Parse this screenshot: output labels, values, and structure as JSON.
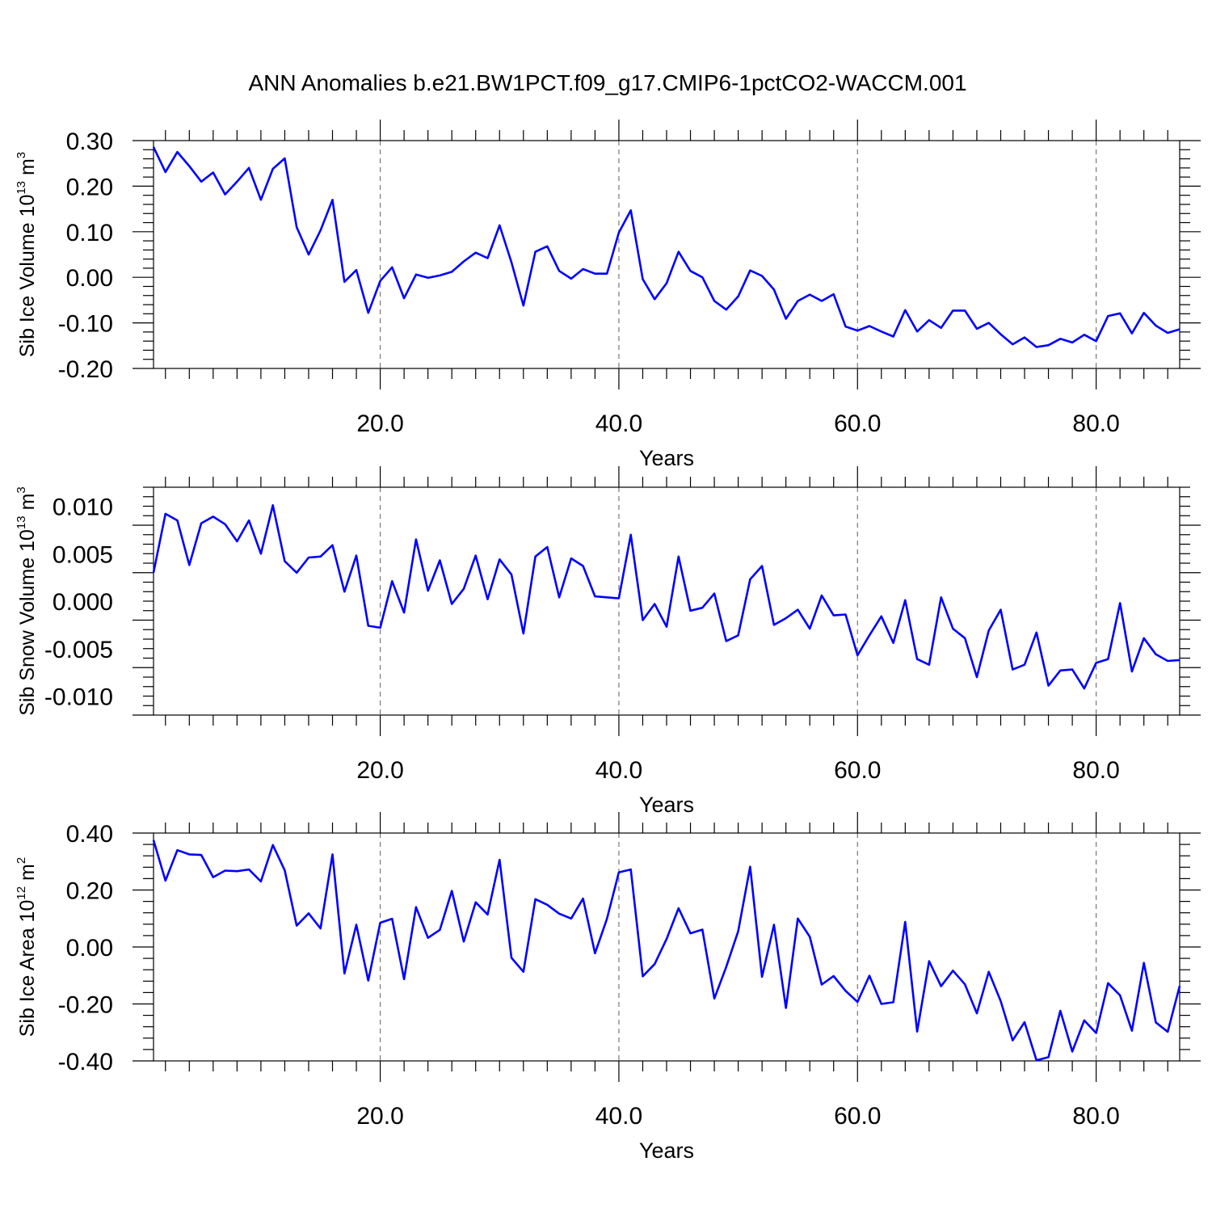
{
  "title": "ANN Anomalies b.e21.BW1PCT.f09_g17.CMIP6-1pctCO2-WACCM.001",
  "colors": {
    "line": "#0000ff",
    "grid": "#777777"
  },
  "chart_data": [
    {
      "type": "line",
      "xlabel": "Years",
      "ylabel": "Sib Ice Volume 10",
      "ylabel_sup": "13",
      "ylabel_unit": " m",
      "ylabel_unit_sup": "3",
      "xlim": [
        1,
        87
      ],
      "ylim": [
        -0.2,
        0.3
      ],
      "xticks": [
        20,
        40,
        60,
        80
      ],
      "xtick_labels": [
        "20.0",
        "40.0",
        "60.0",
        "80.0"
      ],
      "yticks": [
        0.3,
        0.2,
        0.1,
        0.0,
        -0.1,
        -0.2
      ],
      "ytick_labels": [
        "0.30",
        "0.20",
        "0.10",
        "0.00",
        "-0.10",
        "-0.20"
      ],
      "grid_x_dashed": true,
      "x_start": 1,
      "values": [
        0.286,
        0.231,
        0.275,
        0.244,
        0.21,
        0.23,
        0.182,
        0.21,
        0.24,
        0.17,
        0.238,
        0.261,
        0.11,
        0.05,
        0.103,
        0.17,
        -0.01,
        0.016,
        -0.078,
        -0.008,
        0.022,
        -0.046,
        0.006,
        -0.001,
        0.004,
        0.012,
        0.035,
        0.054,
        0.042,
        0.114,
        0.033,
        -0.062,
        0.056,
        0.068,
        0.014,
        -0.003,
        0.018,
        0.008,
        0.008,
        0.098,
        0.147,
        -0.004,
        -0.048,
        -0.013,
        0.056,
        0.014,
        0.0,
        -0.052,
        -0.071,
        -0.042,
        0.015,
        0.003,
        -0.027,
        -0.091,
        -0.052,
        -0.038,
        -0.052,
        -0.037,
        -0.108,
        -0.117,
        -0.107,
        -0.119,
        -0.13,
        -0.072,
        -0.119,
        -0.094,
        -0.111,
        -0.073,
        -0.073,
        -0.113,
        -0.1,
        -0.125,
        -0.147,
        -0.132,
        -0.153,
        -0.149,
        -0.135,
        -0.143,
        -0.126,
        -0.14,
        -0.085,
        -0.079,
        -0.123,
        -0.078,
        -0.106,
        -0.122,
        -0.114
      ]
    },
    {
      "type": "line",
      "xlabel": "Years",
      "ylabel": "Sib Snow Volume 10",
      "ylabel_sup": "13",
      "ylabel_unit": " m",
      "ylabel_unit_sup": "3",
      "xlim": [
        1,
        87
      ],
      "ylim": [
        -0.012,
        0.012
      ],
      "xticks": [
        20,
        40,
        60,
        80
      ],
      "xtick_labels": [
        "20.0",
        "40.0",
        "60.0",
        "80.0"
      ],
      "yticks": [
        0.01,
        0.005,
        0.0,
        -0.005,
        -0.01
      ],
      "ytick_labels": [
        "0.010",
        "0.005",
        "0.000",
        "-0.005",
        "-0.010"
      ],
      "grid_x_dashed": true,
      "x_start": 1,
      "values": [
        0.003,
        0.0092,
        0.0085,
        0.0038,
        0.0082,
        0.0089,
        0.0081,
        0.0063,
        0.0085,
        0.005,
        0.0101,
        0.0042,
        0.003,
        0.0046,
        0.0047,
        0.0059,
        0.001,
        0.0048,
        -0.0026,
        -0.0028,
        0.0021,
        -0.0012,
        0.0065,
        0.0011,
        0.0043,
        -0.0003,
        0.0013,
        0.0048,
        0.0002,
        0.0044,
        0.0028,
        -0.0034,
        0.0047,
        0.0057,
        0.0004,
        0.0045,
        0.0037,
        0.0005,
        0.0004,
        0.0003,
        0.007,
        -0.002,
        -0.0003,
        -0.0027,
        0.0047,
        -0.001,
        -0.0007,
        0.0008,
        -0.0042,
        -0.0036,
        0.0023,
        0.0037,
        -0.0025,
        -0.0018,
        -0.0009,
        -0.0029,
        0.0006,
        -0.0015,
        -0.0014,
        -0.0057,
        -0.0036,
        -0.0016,
        -0.0044,
        0.0001,
        -0.0061,
        -0.0067,
        0.0004,
        -0.0029,
        -0.0039,
        -0.008,
        -0.0031,
        -0.0009,
        -0.0072,
        -0.0067,
        -0.0033,
        -0.0089,
        -0.0073,
        -0.0072,
        -0.0092,
        -0.0065,
        -0.0061,
        -0.0002,
        -0.0074,
        -0.0039,
        -0.0056,
        -0.0063,
        -0.0062
      ]
    },
    {
      "type": "line",
      "xlabel": "Years",
      "ylabel": "Sib Ice Area 10",
      "ylabel_sup": "12",
      "ylabel_unit": " m",
      "ylabel_unit_sup": "2",
      "xlim": [
        1,
        87
      ],
      "ylim": [
        -0.4,
        0.4
      ],
      "xticks": [
        20,
        40,
        60,
        80
      ],
      "xtick_labels": [
        "20.0",
        "40.0",
        "60.0",
        "80.0"
      ],
      "yticks": [
        0.4,
        0.2,
        0.0,
        -0.2,
        -0.4
      ],
      "ytick_labels": [
        "0.40",
        "0.20",
        "0.00",
        "-0.20",
        "-0.40"
      ],
      "grid_x_dashed": true,
      "x_start": 1,
      "values": [
        0.375,
        0.233,
        0.34,
        0.325,
        0.323,
        0.245,
        0.268,
        0.266,
        0.272,
        0.23,
        0.358,
        0.269,
        0.075,
        0.118,
        0.065,
        0.325,
        -0.093,
        0.078,
        -0.118,
        0.085,
        0.099,
        -0.113,
        0.14,
        0.032,
        0.06,
        0.197,
        0.019,
        0.157,
        0.114,
        0.306,
        -0.038,
        -0.087,
        0.168,
        0.148,
        0.117,
        0.1,
        0.17,
        -0.022,
        0.099,
        0.262,
        0.272,
        -0.103,
        -0.06,
        0.028,
        0.136,
        0.048,
        0.061,
        -0.181,
        -0.07,
        0.055,
        0.282,
        -0.105,
        0.078,
        -0.214,
        0.1,
        0.036,
        -0.132,
        -0.102,
        -0.154,
        -0.193,
        -0.101,
        -0.2,
        -0.194,
        0.088,
        -0.297,
        -0.05,
        -0.138,
        -0.083,
        -0.131,
        -0.233,
        -0.087,
        -0.19,
        -0.328,
        -0.264,
        -0.398,
        -0.387,
        -0.224,
        -0.367,
        -0.258,
        -0.302,
        -0.127,
        -0.17,
        -0.294,
        -0.056,
        -0.265,
        -0.298,
        -0.137
      ]
    }
  ]
}
